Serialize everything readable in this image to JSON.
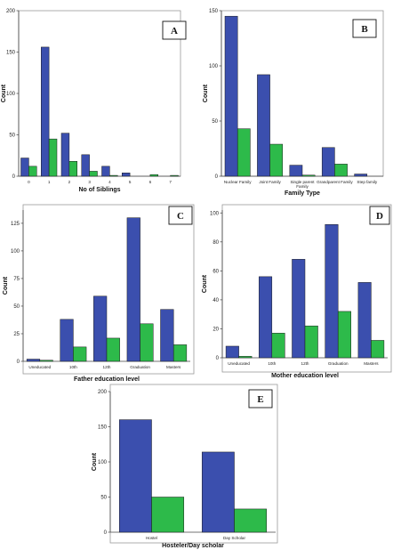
{
  "colors": {
    "series1": "#3b4fae",
    "series2": "#2dba4a"
  },
  "chart_data": [
    {
      "type": "bar",
      "panel_label": "A",
      "categories": [
        "0",
        "1",
        "2",
        "3",
        "4",
        "5",
        "6",
        "7"
      ],
      "series": [
        {
          "values": [
            22,
            156,
            52,
            26,
            12,
            4,
            0,
            0
          ]
        },
        {
          "values": [
            12,
            45,
            18,
            6,
            1,
            0,
            2,
            1
          ]
        }
      ],
      "xlabel": "No of Siblings",
      "ylabel": "Count",
      "ylim": [
        0,
        200
      ],
      "yticks": [
        0,
        50,
        100,
        150,
        200
      ],
      "grid": false
    },
    {
      "type": "bar",
      "panel_label": "B",
      "categories": [
        "Nuclear Family",
        "Joint Family",
        "Single parent Family",
        "Grandparent Family",
        "Step family"
      ],
      "series": [
        {
          "values": [
            145,
            92,
            10,
            26,
            2
          ]
        },
        {
          "values": [
            43,
            29,
            1,
            11,
            0
          ]
        }
      ],
      "xlabel": "Family Type",
      "ylabel": "Count",
      "ylim": [
        0,
        150
      ],
      "yticks": [
        0,
        50,
        100,
        150
      ],
      "grid": false
    },
    {
      "type": "bar",
      "panel_label": "C",
      "categories": [
        "Uneducated",
        "10th",
        "12th",
        "Graduation",
        "Masters"
      ],
      "series": [
        {
          "values": [
            2,
            38,
            59,
            130,
            47
          ]
        },
        {
          "values": [
            1,
            13,
            21,
            34,
            15
          ]
        }
      ],
      "xlabel": "Father education level",
      "ylabel": "Count",
      "ylim": [
        0,
        137
      ],
      "yticks": [
        0,
        25,
        50,
        75,
        100,
        125
      ],
      "grid": false
    },
    {
      "type": "bar",
      "panel_label": "D",
      "categories": [
        "Uneducated",
        "10th",
        "12th",
        "Graduation",
        "Masters"
      ],
      "series": [
        {
          "values": [
            8,
            56,
            68,
            92,
            52
          ]
        },
        {
          "values": [
            1,
            17,
            22,
            32,
            12
          ]
        }
      ],
      "xlabel": "Mother education level",
      "ylabel": "Count",
      "ylim": [
        0,
        102
      ],
      "yticks": [
        0,
        20,
        40,
        60,
        80,
        100
      ],
      "grid": false
    },
    {
      "type": "bar",
      "panel_label": "E",
      "categories": [
        "Hostel",
        "Day Scholar"
      ],
      "series": [
        {
          "values": [
            160,
            114
          ]
        },
        {
          "values": [
            50,
            33
          ]
        }
      ],
      "xlabel": "Hosteler/Day scholar",
      "ylabel": "Count",
      "ylim": [
        0,
        200
      ],
      "yticks": [
        0,
        50,
        100,
        150,
        200
      ],
      "grid": false
    }
  ]
}
